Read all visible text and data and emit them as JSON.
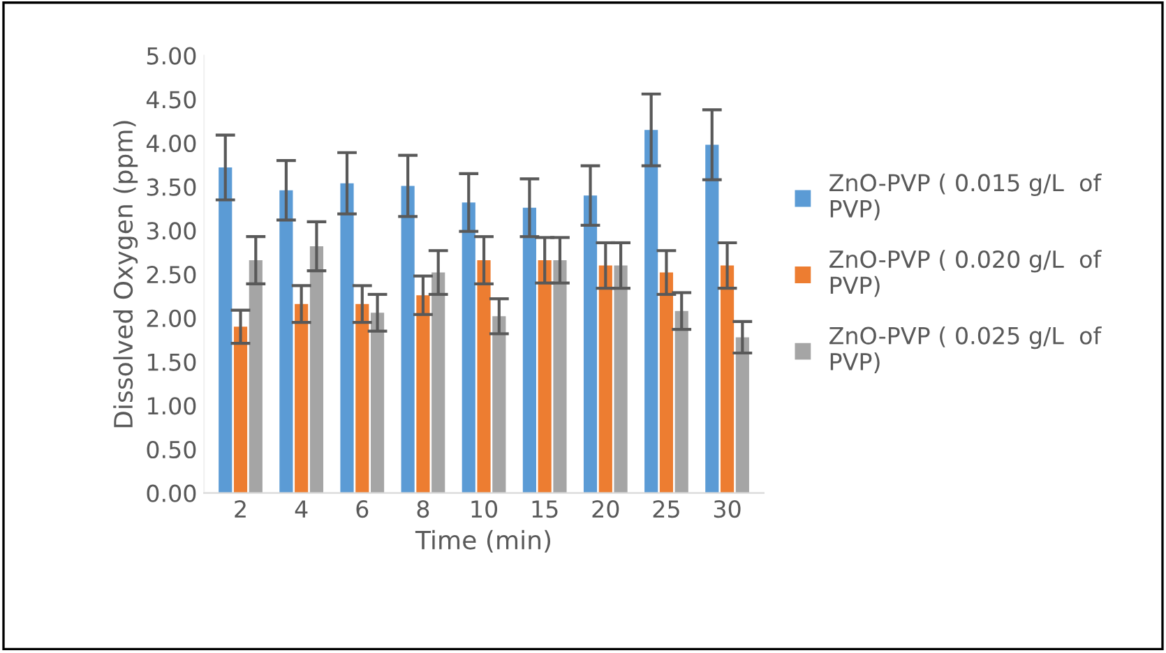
{
  "chart_data": {
    "type": "bar",
    "xlabel": "Time (min)",
    "ylabel": "Dissolved Oxygen (ppm)",
    "categories": [
      "2",
      "4",
      "6",
      "8",
      "10",
      "15",
      "20",
      "25",
      "30"
    ],
    "series": [
      {
        "name": "ZnO-PVP ( 0.015 g/L  of PVP)",
        "color": "#5b9bd5",
        "values": [
          3.72,
          3.46,
          3.54,
          3.51,
          3.32,
          3.26,
          3.4,
          4.15,
          3.98
        ],
        "errors": [
          0.37,
          0.34,
          0.35,
          0.35,
          0.33,
          0.33,
          0.34,
          0.41,
          0.4
        ]
      },
      {
        "name": "ZnO-PVP ( 0.020 g/L  of PVP)",
        "color": "#ed7d31",
        "values": [
          1.9,
          2.16,
          2.16,
          2.26,
          2.66,
          2.66,
          2.6,
          2.52,
          2.6
        ],
        "errors": [
          0.19,
          0.21,
          0.21,
          0.22,
          0.27,
          0.26,
          0.26,
          0.25,
          0.26
        ]
      },
      {
        "name": "ZnO-PVP ( 0.025 g/L  of PVP)",
        "color": "#a5a5a5",
        "values": [
          2.66,
          2.82,
          2.06,
          2.52,
          2.02,
          2.66,
          2.6,
          2.08,
          1.78
        ],
        "errors": [
          0.27,
          0.28,
          0.21,
          0.25,
          0.2,
          0.26,
          0.26,
          0.21,
          0.18
        ]
      }
    ],
    "ylim": [
      0,
      5
    ],
    "yticks": [
      {
        "value": 0,
        "label": "0.00"
      },
      {
        "value": 0.5,
        "label": "0.50"
      },
      {
        "value": 1,
        "label": "1.00"
      },
      {
        "value": 1.5,
        "label": "1.50"
      },
      {
        "value": 2,
        "label": "2.00"
      },
      {
        "value": 2.5,
        "label": "2.50"
      },
      {
        "value": 3,
        "label": "3.00"
      },
      {
        "value": 3.5,
        "label": "3.50"
      },
      {
        "value": 4,
        "label": "4.00"
      },
      {
        "value": 4.5,
        "label": "4.50"
      },
      {
        "value": 5,
        "label": "5.00"
      }
    ],
    "grid": false,
    "legend": "right"
  }
}
